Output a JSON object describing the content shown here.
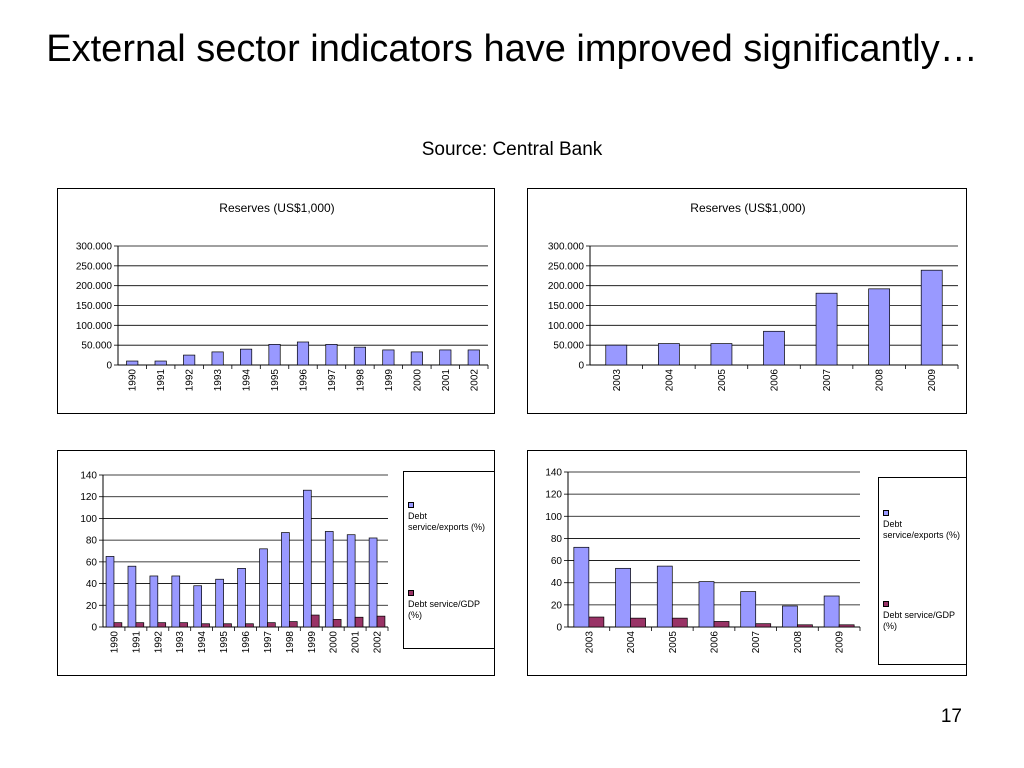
{
  "slide": {
    "title": "External sector indicators have improved significantly…",
    "source": "Source: Central Bank",
    "page_number": "17"
  },
  "chart_data": [
    {
      "type": "bar",
      "title": "Reserves (US$1,000)",
      "categories": [
        "1990",
        "1991",
        "1992",
        "1993",
        "1994",
        "1995",
        "1996",
        "1997",
        "1998",
        "1999",
        "2000",
        "2001",
        "2002"
      ],
      "series": [
        {
          "values": [
            10,
            10,
            25,
            33,
            40,
            52,
            58,
            52,
            45,
            38,
            33,
            38,
            38
          ],
          "color": "#9999ff"
        }
      ],
      "ylim": [
        0,
        300
      ],
      "yticks": [
        0,
        50,
        100,
        150,
        200,
        250,
        300
      ],
      "ytick_labels": [
        "0",
        "50.000",
        "100.000",
        "150.000",
        "200.000",
        "250.000",
        "300.000"
      ],
      "grid": true,
      "legend": "none"
    },
    {
      "type": "bar",
      "title": "Reserves (US$1,000)",
      "categories": [
        "2003",
        "2004",
        "2005",
        "2006",
        "2007",
        "2008",
        "2009"
      ],
      "series": [
        {
          "values": [
            50,
            54,
            54,
            85,
            181,
            192,
            239
          ],
          "color": "#9999ff"
        }
      ],
      "ylim": [
        0,
        300
      ],
      "yticks": [
        0,
        50,
        100,
        150,
        200,
        250,
        300
      ],
      "ytick_labels": [
        "0",
        "50.000",
        "100.000",
        "150.000",
        "200.000",
        "250.000",
        "300.000"
      ],
      "grid": true,
      "legend": "none"
    },
    {
      "type": "bar",
      "title": "",
      "categories": [
        "1990",
        "1991",
        "1992",
        "1993",
        "1994",
        "1995",
        "1996",
        "1997",
        "1998",
        "1999",
        "2000",
        "2001",
        "2002"
      ],
      "series": [
        {
          "name": "Debt service/exports (%)",
          "values": [
            65,
            56,
            47,
            47,
            38,
            44,
            54,
            72,
            87,
            126,
            88,
            85,
            82
          ],
          "color": "#9999ff"
        },
        {
          "name": "Debt service/GDP (%)",
          "values": [
            4,
            4,
            4,
            4,
            3,
            3,
            3,
            4,
            5,
            11,
            7,
            9,
            10
          ],
          "color": "#993366"
        }
      ],
      "ylim": [
        0,
        140
      ],
      "yticks": [
        0,
        20,
        40,
        60,
        80,
        100,
        120,
        140
      ],
      "ytick_labels": [
        "0",
        "20",
        "40",
        "60",
        "80",
        "100",
        "120",
        "140"
      ],
      "grid": true,
      "legend": "right"
    },
    {
      "type": "bar",
      "title": "",
      "categories": [
        "2003",
        "2004",
        "2005",
        "2006",
        "2007",
        "2008",
        "2009"
      ],
      "series": [
        {
          "name": "Debt service/exports (%)",
          "values": [
            72,
            53,
            55,
            41,
            32,
            19,
            28
          ],
          "color": "#9999ff"
        },
        {
          "name": "Debt service/GDP (%)",
          "values": [
            9,
            8,
            8,
            5,
            3,
            2,
            2
          ],
          "color": "#993366"
        }
      ],
      "ylim": [
        0,
        140
      ],
      "yticks": [
        0,
        20,
        40,
        60,
        80,
        100,
        120,
        140
      ],
      "ytick_labels": [
        "0",
        "20",
        "40",
        "60",
        "80",
        "100",
        "120",
        "140"
      ],
      "grid": true,
      "legend": "right"
    }
  ]
}
